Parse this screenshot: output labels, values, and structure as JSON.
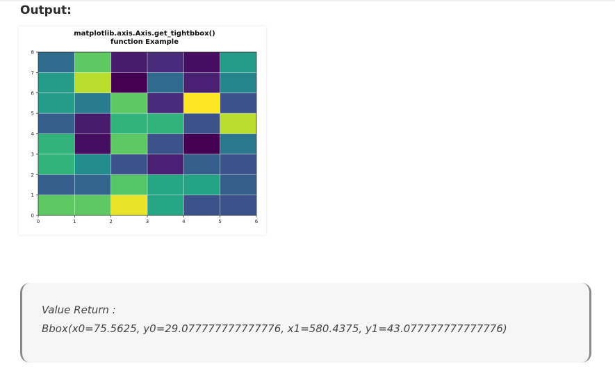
{
  "heading": "Output:",
  "chart_data": {
    "type": "heatmap",
    "title_lines": [
      "matplotlib.axis.Axis.get_tightbbox()",
      "function Example"
    ],
    "x_ticks": [
      "0",
      "1",
      "2",
      "3",
      "4",
      "5",
      "6"
    ],
    "y_ticks": [
      "0",
      "1",
      "2",
      "3",
      "4",
      "5",
      "6",
      "7",
      "8"
    ],
    "xlim": [
      0,
      6
    ],
    "ylim": [
      0,
      8
    ],
    "grid": true,
    "colormap": "viridis",
    "values": [
      [
        0.75,
        0.75,
        0.97,
        0.6,
        0.25,
        0.25
      ],
      [
        0.3,
        0.33,
        0.73,
        0.6,
        0.58,
        0.3
      ],
      [
        0.65,
        0.48,
        0.25,
        0.12,
        0.3,
        0.25
      ],
      [
        0.65,
        0.05,
        0.75,
        0.25,
        0.0,
        0.4
      ],
      [
        0.3,
        0.1,
        0.65,
        0.65,
        0.25,
        0.9
      ],
      [
        0.55,
        0.42,
        0.75,
        0.15,
        1.0,
        0.25
      ],
      [
        0.55,
        0.9,
        0.0,
        0.35,
        0.12,
        0.45
      ],
      [
        0.35,
        0.75,
        0.1,
        0.15,
        0.05,
        0.55
      ]
    ]
  },
  "result": {
    "line1": "Value Return :",
    "line2": "Bbox(x0=75.5625, y0=29.077777777777776, x1=580.4375, y1=43.077777777777776)"
  }
}
